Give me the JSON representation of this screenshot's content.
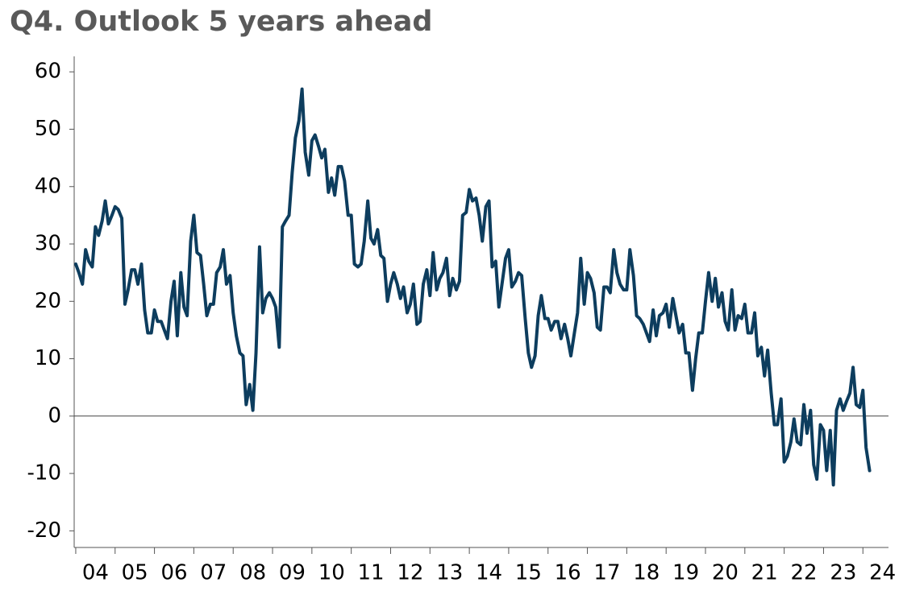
{
  "chart_data": {
    "type": "line",
    "title": "Q4. Outlook 5 years ahead",
    "x": [
      4,
      4.08,
      4.17,
      4.25,
      4.33,
      4.42,
      4.5,
      4.58,
      4.67,
      4.75,
      4.83,
      4.92,
      5,
      5.08,
      5.17,
      5.25,
      5.33,
      5.42,
      5.5,
      5.58,
      5.67,
      5.75,
      5.83,
      5.92,
      6,
      6.08,
      6.17,
      6.25,
      6.33,
      6.42,
      6.5,
      6.58,
      6.67,
      6.75,
      6.83,
      6.92,
      7,
      7.08,
      7.17,
      7.25,
      7.33,
      7.42,
      7.5,
      7.58,
      7.67,
      7.75,
      7.83,
      7.92,
      8,
      8.08,
      8.17,
      8.25,
      8.33,
      8.42,
      8.5,
      8.58,
      8.67,
      8.75,
      8.83,
      8.92,
      9,
      9.08,
      9.17,
      9.25,
      9.33,
      9.42,
      9.5,
      9.58,
      9.67,
      9.75,
      9.83,
      9.92,
      10,
      10.08,
      10.17,
      10.25,
      10.33,
      10.42,
      10.5,
      10.58,
      10.67,
      10.75,
      10.83,
      10.92,
      11,
      11.08,
      11.17,
      11.25,
      11.33,
      11.42,
      11.5,
      11.58,
      11.67,
      11.75,
      11.83,
      11.92,
      12,
      12.08,
      12.17,
      12.25,
      12.33,
      12.42,
      12.5,
      12.58,
      12.67,
      12.75,
      12.83,
      12.92,
      13,
      13.08,
      13.17,
      13.25,
      13.33,
      13.42,
      13.5,
      13.58,
      13.67,
      13.75,
      13.83,
      13.92,
      14,
      14.08,
      14.17,
      14.25,
      14.33,
      14.42,
      14.5,
      14.58,
      14.67,
      14.75,
      14.83,
      14.92,
      15,
      15.08,
      15.17,
      15.25,
      15.33,
      15.42,
      15.5,
      15.58,
      15.67,
      15.75,
      15.83,
      15.92,
      16,
      16.08,
      16.17,
      16.25,
      16.33,
      16.42,
      16.5,
      16.58,
      16.67,
      16.75,
      16.83,
      16.92,
      17,
      17.08,
      17.17,
      17.25,
      17.33,
      17.42,
      17.5,
      17.58,
      17.67,
      17.75,
      17.83,
      17.92,
      18,
      18.08,
      18.17,
      18.25,
      18.33,
      18.42,
      18.5,
      18.58,
      18.67,
      18.75,
      18.83,
      18.92,
      19,
      19.08,
      19.17,
      19.25,
      19.33,
      19.42,
      19.5,
      19.58,
      19.67,
      19.75,
      19.83,
      19.92,
      20,
      20.08,
      20.17,
      20.25,
      20.33,
      20.42,
      20.5,
      20.58,
      20.67,
      20.75,
      20.83,
      20.92,
      21,
      21.08,
      21.17,
      21.25,
      21.33,
      21.42,
      21.5,
      21.58,
      21.67,
      21.75,
      21.83,
      21.92,
      22,
      22.08,
      22.17,
      22.25,
      22.33,
      22.42,
      22.5,
      22.58,
      22.67,
      22.75,
      22.83,
      22.92,
      23,
      23.08,
      23.17,
      23.25,
      23.33,
      23.42,
      23.5,
      23.58,
      23.67,
      23.75,
      23.83,
      23.92,
      24,
      24.08,
      24.17
    ],
    "values": [
      26.5,
      25,
      23,
      29,
      27,
      26,
      33,
      31.5,
      34,
      37.5,
      33.5,
      35,
      36.5,
      36,
      34.5,
      19.5,
      22,
      25.5,
      25.5,
      23,
      26.5,
      18.5,
      14.5,
      14.5,
      18.5,
      16.5,
      16.5,
      15,
      13.5,
      20,
      23.5,
      14,
      25,
      19,
      17.5,
      30.5,
      35,
      28.5,
      28,
      23,
      17.5,
      19.5,
      19.5,
      25,
      26,
      29,
      23,
      24.5,
      18,
      14,
      11,
      10.5,
      2,
      5.5,
      1,
      11,
      29.5,
      18,
      20.5,
      21.5,
      20.5,
      19,
      12,
      33,
      34,
      35,
      42.5,
      48.5,
      51.5,
      57,
      46,
      42,
      48,
      49,
      47,
      45,
      46.5,
      39,
      41.5,
      38.5,
      43.5,
      43.5,
      41,
      35,
      35,
      26.5,
      26,
      26.5,
      30.5,
      37.5,
      31,
      30,
      32.5,
      28,
      27.5,
      20,
      23,
      25,
      23,
      20.5,
      22.5,
      18,
      19.5,
      23,
      16,
      16.5,
      23,
      25.5,
      21,
      28.5,
      22,
      24,
      25,
      27.5,
      21,
      24,
      22,
      23.5,
      35,
      35.5,
      39.5,
      37.5,
      38,
      35,
      30.5,
      36.5,
      37.5,
      26,
      27,
      19,
      23,
      27.5,
      29,
      22.5,
      23.5,
      25,
      24.5,
      17,
      11,
      8.5,
      10.5,
      17.5,
      21,
      17,
      17,
      15,
      16.5,
      16.5,
      13.5,
      16,
      13.5,
      10.5,
      14.5,
      18,
      27.5,
      19.5,
      25,
      24,
      21.5,
      15.5,
      15,
      22.5,
      22.5,
      21.5,
      29,
      25,
      23,
      22,
      22,
      29,
      24.5,
      17.5,
      17,
      16,
      14.5,
      13,
      18.5,
      14,
      17.5,
      18,
      19.5,
      15.5,
      20.5,
      17.5,
      14.5,
      16,
      11,
      11,
      4.5,
      10,
      14.5,
      14.5,
      20,
      25,
      20,
      24,
      19,
      21.5,
      16.5,
      15,
      22,
      15,
      17.5,
      17,
      19.5,
      14.5,
      14.5,
      18,
      10.5,
      12,
      7,
      11.5,
      4,
      -1.5,
      -1.5,
      3,
      -8,
      -7,
      -4.5,
      -0.5,
      -4.5,
      -5,
      2,
      -3,
      1,
      -8.5,
      -11,
      -1.5,
      -2.5,
      -9.5,
      -2.5,
      -12,
      1,
      3,
      1,
      2.5,
      4,
      8.5,
      2,
      1.5,
      4.5,
      -5.5,
      -9.5
    ],
    "color": "#0d3d5e",
    "xlim": [
      3.96,
      24.65
    ],
    "xticks": [
      {
        "value": 4.5,
        "label": "04"
      },
      {
        "value": 5.5,
        "label": "05"
      },
      {
        "value": 6.5,
        "label": "06"
      },
      {
        "value": 7.5,
        "label": "07"
      },
      {
        "value": 8.5,
        "label": "08"
      },
      {
        "value": 9.5,
        "label": "09"
      },
      {
        "value": 10.5,
        "label": "10"
      },
      {
        "value": 11.5,
        "label": "11"
      },
      {
        "value": 12.5,
        "label": "12"
      },
      {
        "value": 13.5,
        "label": "13"
      },
      {
        "value": 14.5,
        "label": "14"
      },
      {
        "value": 15.5,
        "label": "15"
      },
      {
        "value": 16.5,
        "label": "16"
      },
      {
        "value": 17.5,
        "label": "17"
      },
      {
        "value": 18.5,
        "label": "18"
      },
      {
        "value": 19.5,
        "label": "19"
      },
      {
        "value": 20.5,
        "label": "20"
      },
      {
        "value": 21.5,
        "label": "21"
      },
      {
        "value": 22.5,
        "label": "22"
      },
      {
        "value": 23.5,
        "label": "23"
      },
      {
        "value": 24.5,
        "label": "24"
      }
    ],
    "ylim": [
      -22.9,
      62.7
    ],
    "yticks": [
      -20,
      -10,
      0,
      10,
      20,
      30,
      40,
      50,
      60
    ],
    "zero_line": true,
    "grid": false
  }
}
